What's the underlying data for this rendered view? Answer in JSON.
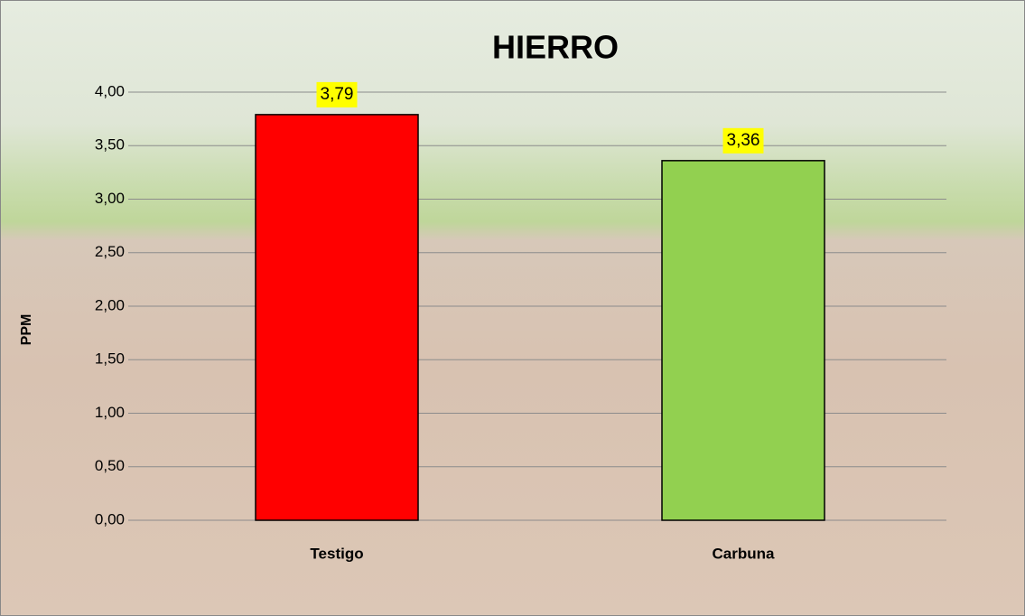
{
  "chart_data": {
    "type": "bar",
    "title": "HIERRO",
    "y_label": "PPM",
    "categories": [
      "Testigo",
      "Carbuna"
    ],
    "values": [
      3.79,
      3.36
    ],
    "value_labels": [
      "3,79",
      "3,36"
    ],
    "colors": [
      "#ff0000",
      "#92d050"
    ],
    "ylim": [
      0,
      4
    ],
    "yticks": [
      {
        "value": 0,
        "label": "0,00"
      },
      {
        "value": 0.5,
        "label": "0,50"
      },
      {
        "value": 1,
        "label": "1,00"
      },
      {
        "value": 1.5,
        "label": "1,50"
      },
      {
        "value": 2,
        "label": "2,00"
      },
      {
        "value": 2.5,
        "label": "2,50"
      },
      {
        "value": 3,
        "label": "3,00"
      },
      {
        "value": 3.5,
        "label": "3,50"
      },
      {
        "value": 4,
        "label": "4,00"
      }
    ],
    "grid": true
  }
}
